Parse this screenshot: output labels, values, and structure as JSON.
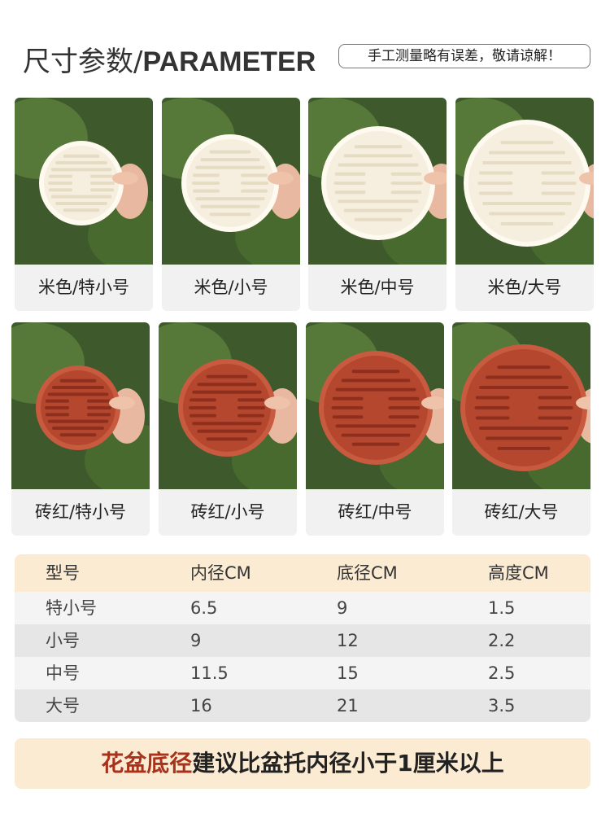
{
  "header": {
    "title_cn": "尺寸参数/",
    "title_en": "PARAMETER",
    "note": "手工测量略有误差，敬请谅解！"
  },
  "products": [
    [
      "米色/特小号",
      "米色/小号",
      "米色/中号",
      "米色/大号"
    ],
    [
      "砖红/特小号",
      "砖红/小号",
      "砖红/中号",
      "砖红/大号"
    ]
  ],
  "table": {
    "header": [
      "型号",
      "内径CM",
      "底径CM",
      "高度CM"
    ],
    "rows": [
      [
        "特小号",
        6.5,
        9,
        1.5
      ],
      [
        "小号",
        9,
        12,
        2.2
      ],
      [
        "中号",
        11.5,
        15,
        2.5
      ],
      [
        "大号",
        16,
        21,
        3.5
      ]
    ]
  },
  "footer": {
    "highlight": "花盆底径",
    "text": "建议比盆托内径小于1厘米以上"
  }
}
